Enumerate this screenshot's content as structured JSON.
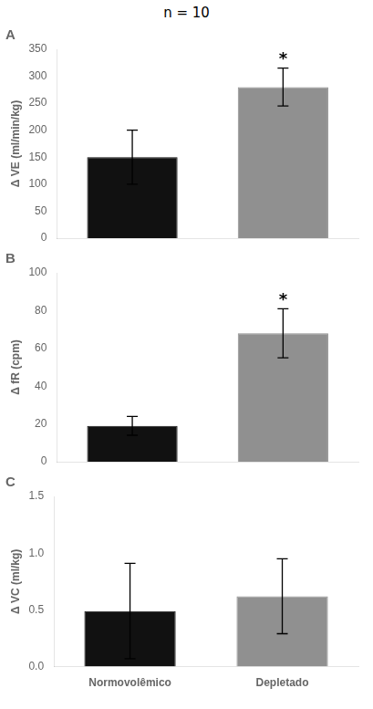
{
  "title": "n = 10",
  "chart_data": [
    {
      "type": "bar",
      "title": "A",
      "ylabel": "Δ VE (ml/min/kg)",
      "categories": [
        "Normovolêmico",
        "Depletado"
      ],
      "values": [
        150,
        280
      ],
      "errors": [
        50,
        35
      ],
      "colors": [
        "#111111",
        "#909090"
      ],
      "ylim": [
        0,
        350
      ],
      "yticks": [
        0,
        50,
        100,
        150,
        200,
        250,
        300,
        350
      ],
      "grid": false,
      "tick_labels": "y",
      "annotations": [
        {
          "text": "*",
          "category": "Depletado"
        }
      ]
    },
    {
      "type": "bar",
      "title": "B",
      "ylabel": "Δ fR (cpm)",
      "categories": [
        "Normovolêmico",
        "Depletado"
      ],
      "values": [
        19,
        68
      ],
      "errors": [
        5,
        13
      ],
      "colors": [
        "#111111",
        "#909090"
      ],
      "ylim": [
        0,
        100
      ],
      "yticks": [
        0,
        20,
        40,
        60,
        80,
        100
      ],
      "grid": false,
      "tick_labels": "y",
      "annotations": [
        {
          "text": "*",
          "category": "Depletado"
        }
      ]
    },
    {
      "type": "bar",
      "title": "C",
      "ylabel": "Δ VC (ml/kg)",
      "categories": [
        "Normovolêmico",
        "Depletado"
      ],
      "values": [
        0.49,
        0.62
      ],
      "errors": [
        0.42,
        0.33
      ],
      "colors": [
        "#111111",
        "#909090"
      ],
      "ylim": [
        0.0,
        1.5
      ],
      "yticks": [
        {
          "value": 0.0,
          "label": "0.0"
        },
        0.5,
        {
          "value": 1.0,
          "label": "1.0"
        },
        1.5
      ],
      "grid": false
    }
  ]
}
